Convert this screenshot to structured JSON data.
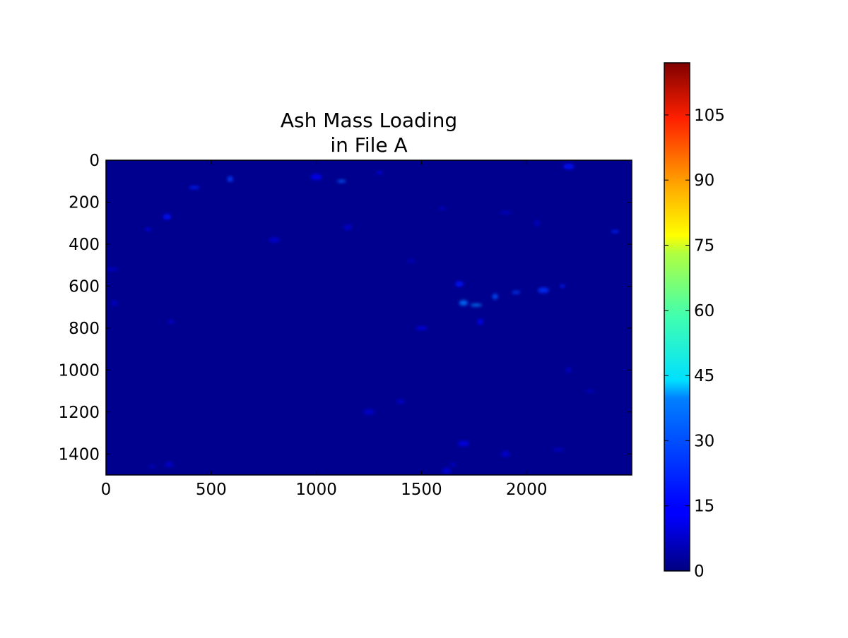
{
  "chart_data": {
    "type": "heatmap",
    "title": [
      "Ash Mass Loading",
      "in File A"
    ],
    "xlabel": "",
    "ylabel": "",
    "xlim": [
      0,
      2500
    ],
    "ylim": [
      1500,
      0
    ],
    "x_ticks": [
      0,
      500,
      1000,
      1500,
      2000
    ],
    "x_tick_labels": [
      "0",
      "500",
      "1000",
      "1500",
      "2000"
    ],
    "y_ticks": [
      0,
      200,
      400,
      600,
      800,
      1000,
      1200,
      1400
    ],
    "y_tick_labels": [
      "0",
      "200",
      "400",
      "600",
      "800",
      "1000",
      "1200",
      "1400"
    ],
    "colormap": "jet",
    "colorbar": {
      "vmin": 0,
      "vmax": 117,
      "ticks": [
        0,
        15,
        30,
        45,
        60,
        75,
        90,
        105
      ],
      "tick_labels": [
        "0",
        "15",
        "30",
        "45",
        "60",
        "75",
        "90",
        "105"
      ],
      "placement": "right"
    },
    "background_value": 0,
    "grid": false,
    "hotspots": [
      {
        "x": 200,
        "y": 330,
        "value": 14
      },
      {
        "x": 290,
        "y": 270,
        "value": 16
      },
      {
        "x": 420,
        "y": 130,
        "value": 18
      },
      {
        "x": 590,
        "y": 90,
        "value": 22
      },
      {
        "x": 1120,
        "y": 100,
        "value": 26
      },
      {
        "x": 1000,
        "y": 80,
        "value": 14
      },
      {
        "x": 1300,
        "y": 60,
        "value": 13
      },
      {
        "x": 1700,
        "y": 680,
        "value": 28
      },
      {
        "x": 1760,
        "y": 690,
        "value": 30
      },
      {
        "x": 1850,
        "y": 650,
        "value": 24
      },
      {
        "x": 1950,
        "y": 630,
        "value": 22
      },
      {
        "x": 2080,
        "y": 620,
        "value": 20
      },
      {
        "x": 2170,
        "y": 600,
        "value": 18
      },
      {
        "x": 1680,
        "y": 590,
        "value": 16
      },
      {
        "x": 1500,
        "y": 800,
        "value": 15
      },
      {
        "x": 1780,
        "y": 770,
        "value": 14
      },
      {
        "x": 2420,
        "y": 340,
        "value": 18
      },
      {
        "x": 2200,
        "y": 30,
        "value": 16
      },
      {
        "x": 1600,
        "y": 230,
        "value": 10
      },
      {
        "x": 1150,
        "y": 320,
        "value": 9
      },
      {
        "x": 30,
        "y": 520,
        "value": 10
      },
      {
        "x": 40,
        "y": 680,
        "value": 9
      },
      {
        "x": 1400,
        "y": 1150,
        "value": 12
      },
      {
        "x": 1700,
        "y": 1350,
        "value": 12
      },
      {
        "x": 1650,
        "y": 1450,
        "value": 11
      },
      {
        "x": 1900,
        "y": 1400,
        "value": 10
      },
      {
        "x": 2150,
        "y": 1380,
        "value": 9
      },
      {
        "x": 2200,
        "y": 1000,
        "value": 8
      },
      {
        "x": 2300,
        "y": 1100,
        "value": 8
      },
      {
        "x": 1250,
        "y": 1200,
        "value": 9
      },
      {
        "x": 220,
        "y": 1460,
        "value": 10
      },
      {
        "x": 300,
        "y": 1450,
        "value": 9
      },
      {
        "x": 1900,
        "y": 250,
        "value": 9
      },
      {
        "x": 2050,
        "y": 300,
        "value": 8
      },
      {
        "x": 1450,
        "y": 480,
        "value": 8
      },
      {
        "x": 800,
        "y": 380,
        "value": 9
      },
      {
        "x": 310,
        "y": 770,
        "value": 12
      },
      {
        "x": 1620,
        "y": 1480,
        "value": 11
      }
    ]
  }
}
